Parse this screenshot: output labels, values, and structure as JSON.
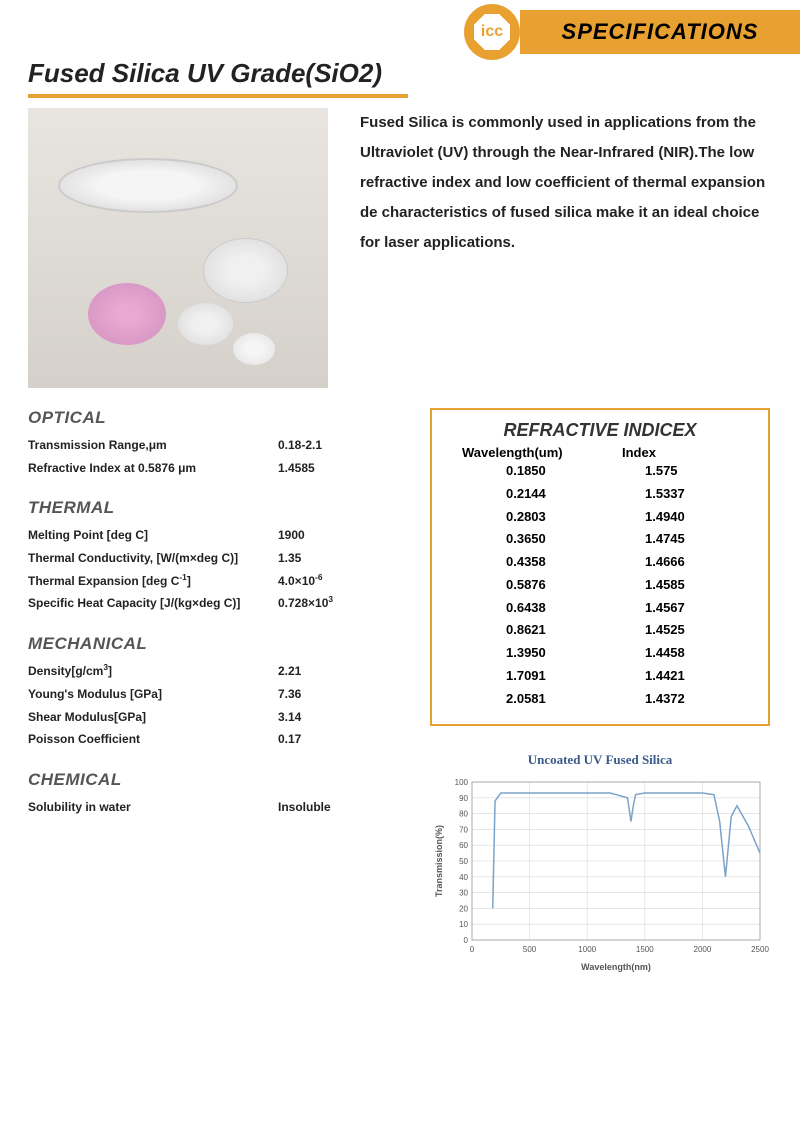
{
  "header": {
    "specifications": "SPECIFICATIONS",
    "logo_text": "icc"
  },
  "title": "Fused Silica UV Grade(SiO2)",
  "intro": "Fused Silica is commonly used in applications from the Ultraviolet (UV) through the Near-Infrared (NIR).The low refractive index and low coefficient of thermal expansion de characteristics of fused silica make it an ideal choice for laser applications.",
  "colors": {
    "accent": "#e8a031",
    "text": "#222222",
    "heading_gray": "#555555",
    "chart_line": "#7ba3c9",
    "chart_grid": "#d8d8d8"
  },
  "sections": {
    "optical": {
      "heading": "OPTICAL",
      "rows": [
        {
          "label": "Transmission Range,μm",
          "value": "0.18-2.1"
        },
        {
          "label": "Refractive Index at 0.5876 μm",
          "value": "1.4585"
        }
      ]
    },
    "thermal": {
      "heading": "THERMAL",
      "rows": [
        {
          "label": "Melting Point  [deg C]",
          "value": "1900"
        },
        {
          "label": "Thermal Conductivity, [W/(m×deg C)]",
          "value": "1.35"
        },
        {
          "label_html": "Thermal Expansion [deg C<sup>-1</sup>]",
          "value_html": "4.0×10<sup>-6</sup>"
        },
        {
          "label": "Specific Heat Capacity [J/(kg×deg C)]",
          "value_html": "0.728×10<sup>3</sup>"
        }
      ]
    },
    "mechanical": {
      "heading": "MECHANICAL",
      "rows": [
        {
          "label_html": "Density[g/cm<sup>3</sup>]",
          "value": "2.21"
        },
        {
          "label": "Young's Modulus [GPa]",
          "value": "7.36"
        },
        {
          "label": "Shear Modulus[GPa]",
          "value": "3.14"
        },
        {
          "label": "Poisson Coefficient",
          "value": "0.17"
        }
      ]
    },
    "chemical": {
      "heading": "CHEMICAL",
      "rows": [
        {
          "label": "Solubility in water",
          "value": "Insoluble"
        }
      ]
    }
  },
  "refractive": {
    "heading": "REFRACTIVE INDICEX",
    "col1": "Wavelength(um)",
    "col2": "Index",
    "rows": [
      {
        "w": "0.1850",
        "i": "1.575"
      },
      {
        "w": "0.2144",
        "i": "1.5337"
      },
      {
        "w": "0.2803",
        "i": "1.4940"
      },
      {
        "w": "0.3650",
        "i": "1.4745"
      },
      {
        "w": "0.4358",
        "i": "1.4666"
      },
      {
        "w": "0.5876",
        "i": "1.4585"
      },
      {
        "w": "0.6438",
        "i": "1.4567"
      },
      {
        "w": "0.8621",
        "i": "1.4525"
      },
      {
        "w": "1.3950",
        "i": "1.4458"
      },
      {
        "w": "1.7091",
        "i": "1.4421"
      },
      {
        "w": "2.0581",
        "i": "1.4372"
      }
    ]
  },
  "chart": {
    "title": "Uncoated UV Fused Silica",
    "type": "line",
    "xlabel": "Wavelength(nm)",
    "ylabel": "Transmission(%)",
    "xlim": [
      0,
      2500
    ],
    "ylim": [
      0,
      100
    ],
    "xtick_step": 500,
    "ytick_step": 10,
    "xticks": [
      "0",
      "500",
      "1000",
      "1500",
      "2000",
      "2500"
    ],
    "yticks": [
      "0",
      "10",
      "20",
      "30",
      "40",
      "50",
      "60",
      "70",
      "80",
      "90",
      "100"
    ],
    "line_color": "#7ba3c9",
    "grid_color": "#d8d8d8",
    "background_color": "#ffffff",
    "label_fontsize": 9,
    "tick_fontsize": 8,
    "line_width": 1.5,
    "data_x": [
      180,
      200,
      250,
      300,
      400,
      600,
      800,
      1000,
      1200,
      1350,
      1380,
      1400,
      1420,
      1500,
      1800,
      2000,
      2100,
      2150,
      2200,
      2250,
      2300,
      2400,
      2500
    ],
    "data_y": [
      20,
      88,
      93,
      93,
      93,
      93,
      93,
      93,
      93,
      90,
      75,
      85,
      92,
      93,
      93,
      93,
      92,
      75,
      40,
      78,
      85,
      72,
      55
    ]
  }
}
